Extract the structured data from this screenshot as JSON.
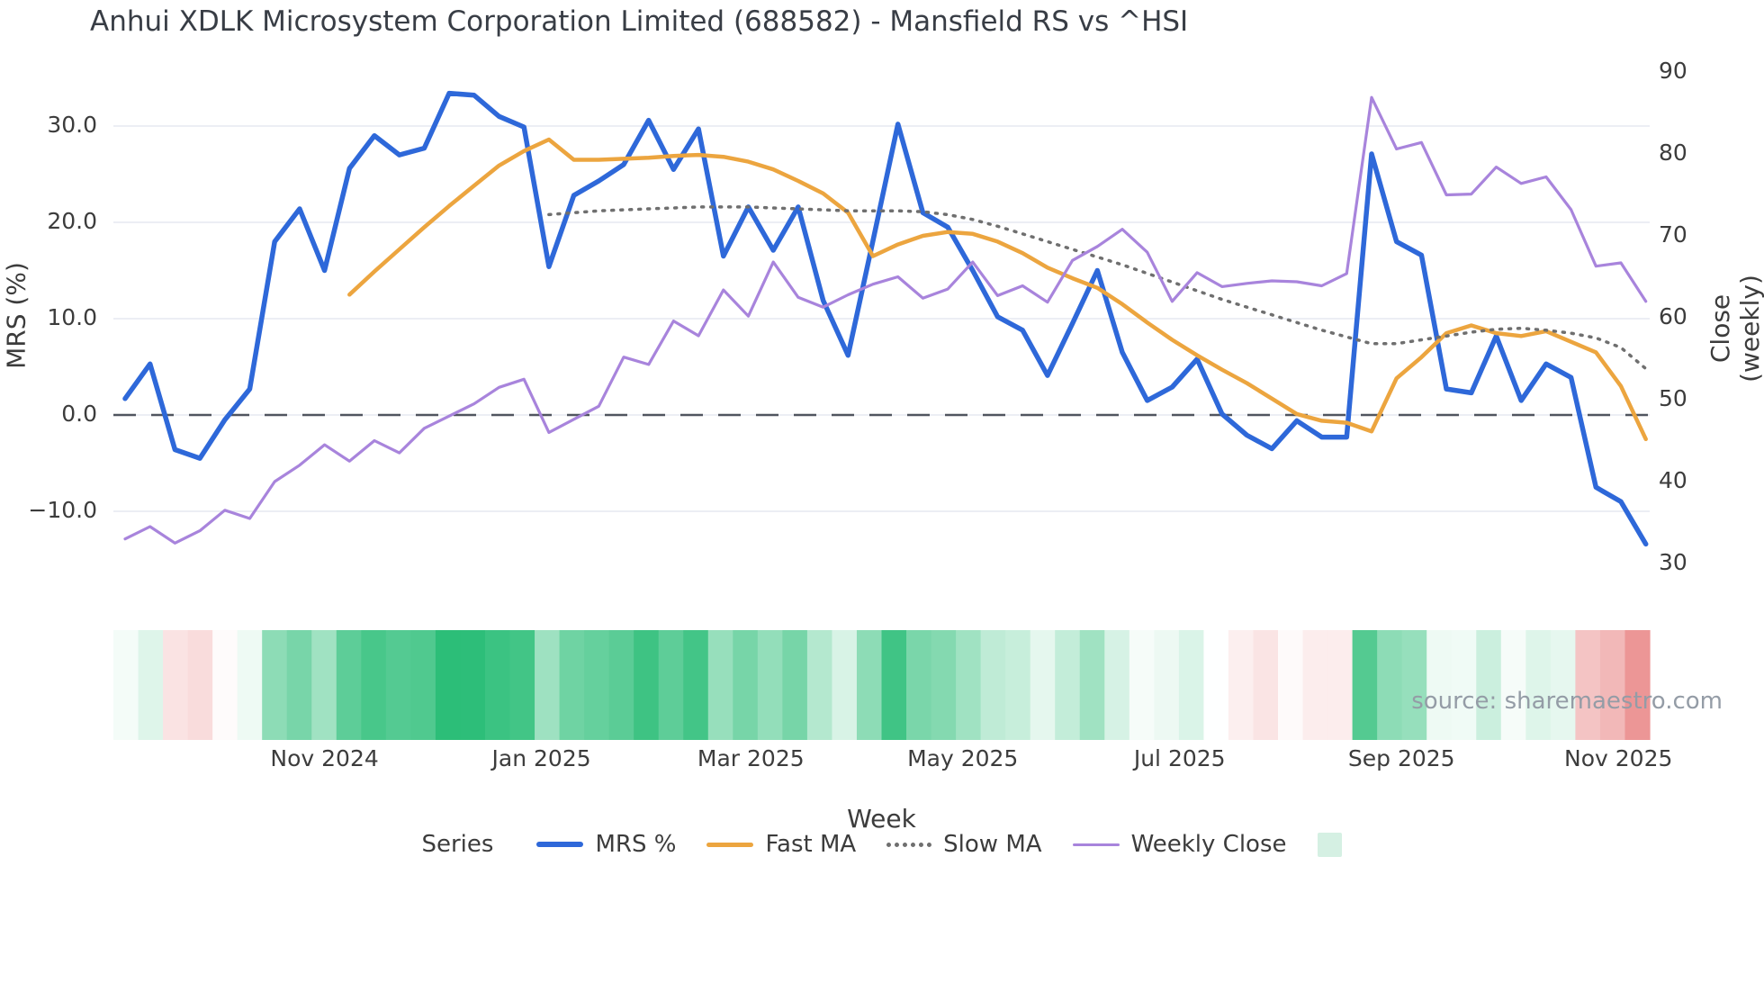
{
  "title": "Anhui XDLK Microsystem Corporation Limited (688582) - Mansfield RS vs ^HSI",
  "source": "source: sharemaestro.com",
  "axes": {
    "left_label": "MRS (%)",
    "right_label": "Close (weekly)",
    "x_label": "Week",
    "left_ticks": [
      {
        "label": "30.0",
        "value": 30
      },
      {
        "label": "20.0",
        "value": 20
      },
      {
        "label": "10.0",
        "value": 10
      },
      {
        "label": "0.0",
        "value": 0
      },
      {
        "label": "−10.0",
        "value": -10
      }
    ],
    "right_ticks": [
      {
        "label": "90",
        "value": 90
      },
      {
        "label": "80",
        "value": 80
      },
      {
        "label": "70",
        "value": 70
      },
      {
        "label": "60",
        "value": 60
      },
      {
        "label": "50",
        "value": 50
      },
      {
        "label": "40",
        "value": 40
      },
      {
        "label": "30",
        "value": 30
      }
    ],
    "x_ticks": [
      {
        "label": "Nov 2024",
        "week": 8.0
      },
      {
        "label": "Jan 2025",
        "week": 16.7
      },
      {
        "label": "Mar 2025",
        "week": 25.1
      },
      {
        "label": "May 2025",
        "week": 33.6
      },
      {
        "label": "Jul 2025",
        "week": 42.3
      },
      {
        "label": "Sep 2025",
        "week": 51.2
      },
      {
        "label": "Nov 2025",
        "week": 59.9
      }
    ]
  },
  "legend": {
    "title": "Series",
    "items": [
      {
        "label": "MRS %",
        "color": "#2e68d9",
        "style": "thick"
      },
      {
        "label": "Fast MA",
        "color": "#eca53f",
        "style": "mid"
      },
      {
        "label": "Slow MA",
        "color": "#6f6f6f",
        "style": "dots"
      },
      {
        "label": "Weekly Close",
        "color": "#a884dc",
        "style": "thin"
      }
    ],
    "heatmap_swatch_color": "#d5f0e3"
  },
  "chart_data": {
    "type": "line",
    "x_unit": "week",
    "n_points": 62,
    "ylim_left": [
      -17,
      37.5
    ],
    "ylim_right": [
      28,
      92
    ],
    "grid": "horizontal-left-ticks",
    "zero_line": {
      "value": 0,
      "axis": "left",
      "style": "dashed",
      "color": "#50555f"
    },
    "series": [
      {
        "name": "MRS %",
        "axis": "left",
        "color": "#2e68d9",
        "width": 5.5,
        "style": "solid",
        "start_index": 0,
        "values": [
          1.7,
          5.3,
          -3.6,
          -4.5,
          -0.5,
          2.7,
          18.0,
          21.4,
          15.0,
          25.6,
          29.0,
          27.0,
          27.7,
          33.4,
          33.2,
          31.0,
          29.9,
          15.4,
          22.8,
          24.3,
          26.0,
          30.6,
          25.5,
          29.7,
          16.5,
          21.6,
          17.1,
          21.6,
          11.9,
          6.2,
          18.1,
          30.2,
          21.0,
          19.5,
          15.0,
          10.2,
          8.8,
          4.1,
          9.5,
          15.0,
          6.5,
          1.5,
          2.9,
          5.8,
          0.1,
          -2.1,
          -3.5,
          -0.6,
          -2.3,
          -2.3,
          27.1,
          18.0,
          16.6,
          2.7,
          2.3,
          8.2,
          1.5,
          5.3,
          3.9,
          -7.5,
          -9.0,
          -13.4
        ]
      },
      {
        "name": "Fast MA",
        "axis": "left",
        "color": "#eca53f",
        "width": 4.5,
        "style": "solid",
        "start_index": 9,
        "values": [
          12.5,
          14.9,
          17.2,
          19.5,
          21.7,
          23.8,
          25.9,
          27.4,
          28.6,
          26.5,
          26.5,
          26.6,
          26.7,
          26.9,
          27.0,
          26.8,
          26.3,
          25.5,
          24.3,
          23.0,
          21.0,
          16.5,
          17.7,
          18.6,
          19.0,
          18.8,
          18.0,
          16.8,
          15.3,
          14.2,
          13.2,
          11.5,
          9.6,
          7.8,
          6.2,
          4.7,
          3.3,
          1.7,
          0.1,
          -0.6,
          -0.8,
          -1.7,
          3.8,
          6.0,
          8.5,
          9.3,
          8.5,
          8.2,
          8.7,
          7.6,
          6.5,
          3.0,
          -2.5
        ]
      },
      {
        "name": "Slow MA",
        "axis": "left",
        "color": "#6f6f6f",
        "width": 3.5,
        "style": "dotted",
        "start_index": 17,
        "values": [
          20.8,
          21.0,
          21.2,
          21.3,
          21.4,
          21.5,
          21.6,
          21.6,
          21.6,
          21.5,
          21.4,
          21.3,
          21.2,
          21.2,
          21.2,
          21.1,
          20.8,
          20.3,
          19.6,
          18.8,
          18.0,
          17.2,
          16.4,
          15.6,
          14.7,
          13.8,
          12.9,
          12.0,
          11.2,
          10.4,
          9.6,
          8.8,
          8.1,
          7.4,
          7.4,
          7.8,
          8.2,
          8.6,
          8.9,
          9.0,
          8.8,
          8.5,
          8.0,
          7.0,
          4.8
        ]
      },
      {
        "name": "Weekly Close",
        "axis": "right",
        "color": "#a884dc",
        "width": 3.2,
        "style": "solid",
        "start_index": 0,
        "values": [
          33.0,
          34.5,
          32.5,
          34.0,
          36.5,
          35.5,
          40.0,
          42.0,
          44.5,
          42.5,
          45.0,
          43.5,
          46.5,
          48.0,
          49.5,
          51.5,
          52.5,
          46.0,
          47.6,
          49.2,
          55.2,
          54.3,
          59.6,
          57.8,
          63.4,
          60.2,
          66.8,
          62.5,
          61.3,
          62.8,
          64.1,
          65.0,
          62.4,
          63.5,
          66.8,
          62.7,
          63.9,
          61.9,
          67.0,
          68.7,
          70.8,
          68.0,
          62.0,
          65.5,
          63.8,
          64.2,
          64.5,
          64.4,
          63.9,
          65.4,
          86.9,
          80.6,
          81.4,
          75.0,
          75.1,
          78.4,
          76.4,
          77.2,
          73.2,
          66.3,
          66.7,
          62.0
        ]
      }
    ],
    "heatmap_strip": {
      "derived_from": "MRS %",
      "positive_color": "#2cbe78",
      "negative_color": "#ec9696",
      "positive_max": 33.4,
      "negative_max": 13.4
    }
  }
}
